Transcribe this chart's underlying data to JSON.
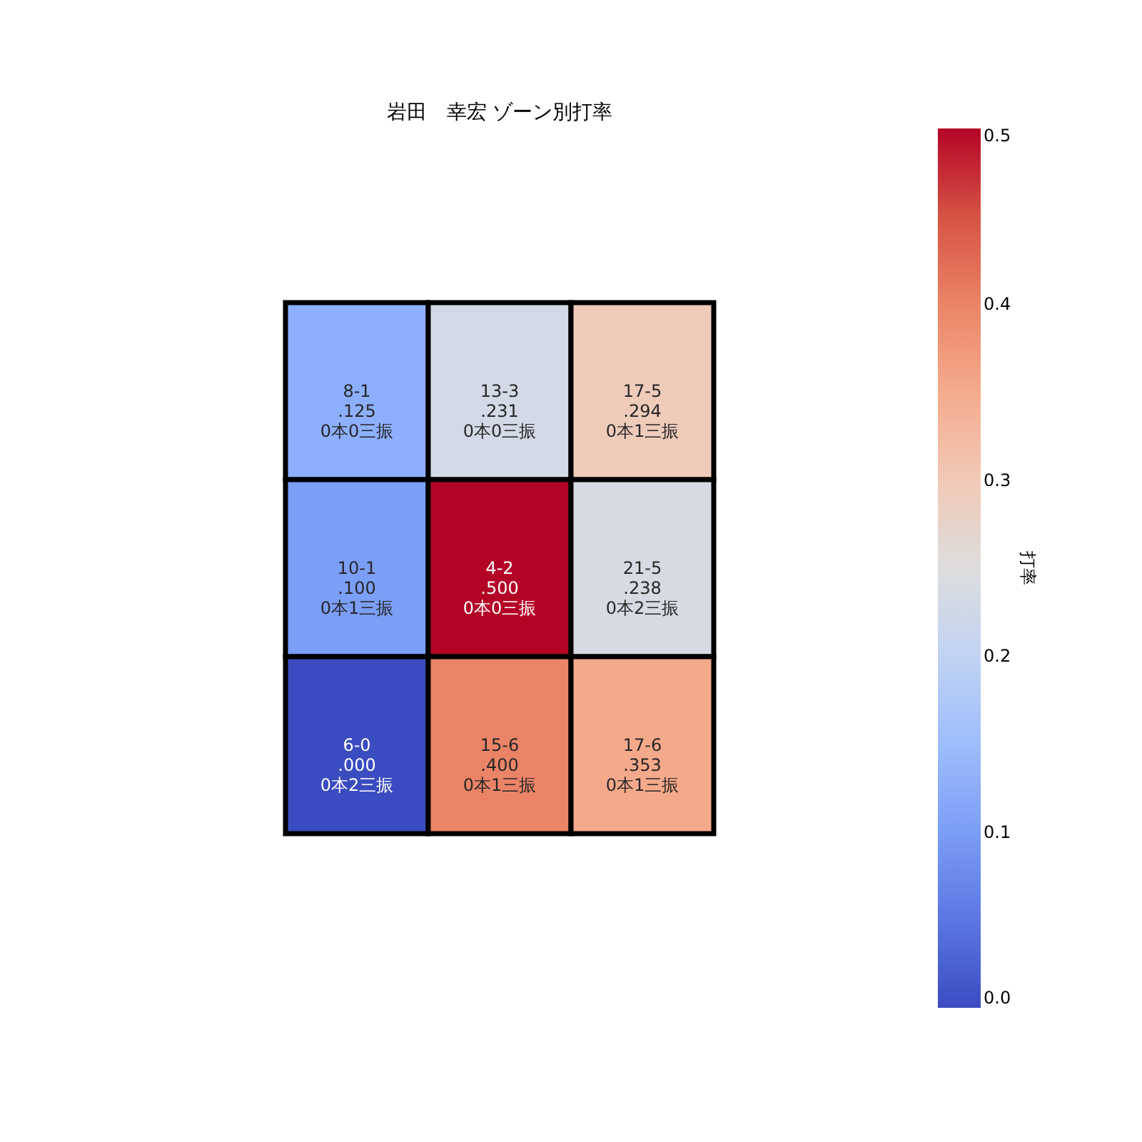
{
  "chart_data": {
    "type": "heatmap",
    "title": "岩田　幸宏 ゾーン別打率",
    "categories": [
      null,
      null,
      null
    ],
    "y_categories": [
      null,
      null,
      null
    ],
    "cells": [
      [
        0.125,
        0.231,
        0.294
      ],
      [
        0.1,
        0.5,
        0.238
      ],
      [
        0.0,
        0.4,
        0.353
      ]
    ],
    "cell_labels": [
      [
        "8-1\n.125\n0本0三振",
        "13-3\n.231\n0本0三振",
        "17-5\n.294\n0本1三振"
      ],
      [
        "10-1\n.100\n0本1三振",
        "4-2\n.500\n0本0三振",
        "21-5\n.238\n0本2三振"
      ],
      [
        "6-0\n.000\n0本2三振",
        "15-6\n.400\n0本1三振",
        "17-6\n.353\n0本1三振"
      ]
    ],
    "clabel": "打率",
    "clim": [
      0,
      0.5
    ],
    "cticks": [
      {
        "value": 0,
        "label": "0.0"
      },
      0.1,
      0.2,
      0.3,
      0.4,
      0.5
    ],
    "tick_labels": false
  }
}
